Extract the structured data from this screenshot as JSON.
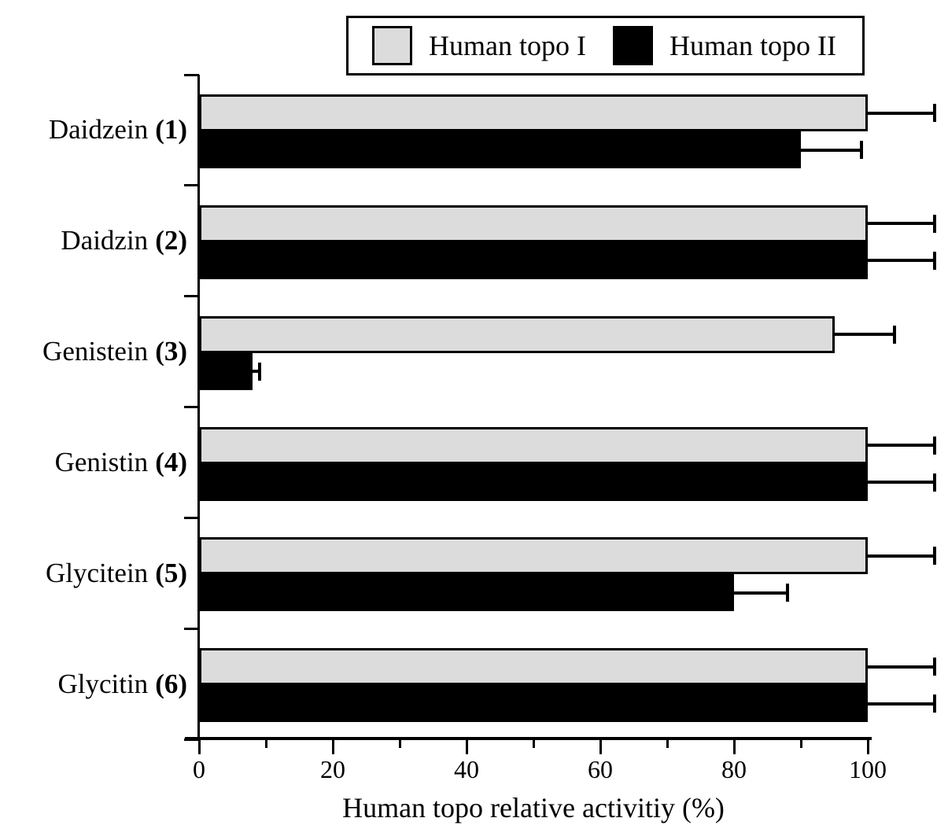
{
  "chart_data": {
    "type": "bar",
    "orientation": "horizontal",
    "title": "",
    "xlabel": "Human topo relative activitiy (%)",
    "ylabel": "",
    "xlim": [
      0,
      110
    ],
    "x_ticks": [
      0,
      20,
      40,
      60,
      80,
      100
    ],
    "x_minor_ticks": [
      10,
      30,
      50,
      70,
      90
    ],
    "grid": false,
    "legend_position": "top-center",
    "error_bars": true,
    "axis_color": "#000000",
    "bar_edge_color": "#000000",
    "background_color": "#ffffff",
    "categories": [
      "Daidzein (1)",
      "Daidzin (2)",
      "Genistein (3)",
      "Genistin (4)",
      "Glycitein (5)",
      "Glycitin (6)"
    ],
    "category_parts": [
      {
        "name": "Daidzein",
        "id": "(1)"
      },
      {
        "name": "Daidzin",
        "id": "(2)"
      },
      {
        "name": "Genistein",
        "id": "(3)"
      },
      {
        "name": "Genistin",
        "id": "(4)"
      },
      {
        "name": "Glycitein",
        "id": "(5)"
      },
      {
        "name": "Glycitin",
        "id": "(6)"
      }
    ],
    "series": [
      {
        "name": "Human topo I",
        "color": "#dcdcdc",
        "values": [
          100,
          100,
          95,
          100,
          100,
          100
        ],
        "errors": [
          10,
          10,
          9,
          10,
          10,
          10
        ]
      },
      {
        "name": "Human topo II",
        "color": "#000000",
        "values": [
          90,
          100,
          8,
          100,
          80,
          100
        ],
        "errors": [
          9,
          10,
          1,
          10,
          8,
          10
        ]
      }
    ]
  }
}
